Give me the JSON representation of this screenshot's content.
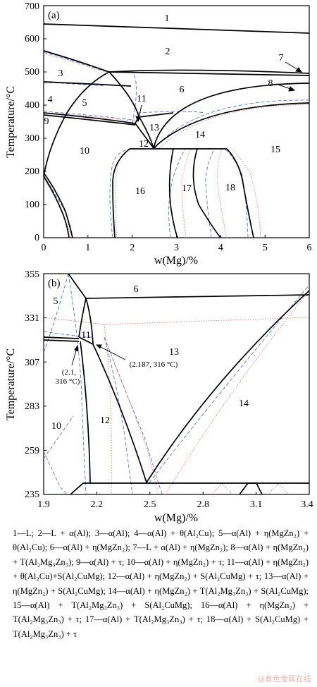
{
  "panel_a": {
    "label": "(a)",
    "ylabel": "Temperature/°C",
    "xlabel": "w(Mg)/%",
    "x_ticks": [
      "0",
      "1",
      "2",
      "3",
      "4",
      "5",
      "6"
    ],
    "y_ticks": [
      "0",
      "100",
      "200",
      "300",
      "400",
      "500",
      "600",
      "700"
    ],
    "xlim": [
      0,
      6
    ],
    "ylim": [
      0,
      700
    ],
    "region_numbers": [
      "1",
      "2",
      "3",
      "4",
      "5",
      "6",
      "7",
      "8",
      "9",
      "10",
      "11",
      "12",
      "13",
      "14",
      "15",
      "16",
      "17",
      "18"
    ]
  },
  "panel_b": {
    "label": "(b)",
    "ylabel": "Temperature/°C",
    "xlabel": "w(Mg)/%",
    "x_ticks": [
      "1.9",
      "2.2",
      "2.5",
      "2.8",
      "3.1",
      "3.4"
    ],
    "y_ticks": [
      "235",
      "259",
      "283",
      "307",
      "331",
      "355"
    ],
    "xlim": [
      1.9,
      3.4
    ],
    "ylim": [
      235,
      355
    ],
    "region_numbers": [
      "5",
      "6",
      "10",
      "11",
      "12",
      "13",
      "14"
    ],
    "point_a": "(2.1,",
    "point_a2": "316 °C)",
    "point_b": "(2.187, 316 °C)"
  },
  "legend_items": [
    "1—L;",
    "2—L + α(Al);",
    "3—α(Al);",
    "4—α(Al) + θ(Al₂Cu);",
    "5—α(Al) + η(MgZn₂) + θ(Al₂Cu);",
    "6—α(Al) + η(MgZn₂);",
    "7—L + α(Al) + η(MgZn₂);",
    "8—α(Al) + η(MgZn₂) + T(Al₂Mg₃Zn₃);",
    "9—α(Al) + τ;",
    "10—α(Al) + η(MgZn₂) + τ;",
    "11—α(Al) + η(MgZn₂) + θ(Al₂Cu)+S(Al₂CuMg);",
    "12—α(Al) + η(MgZn₂) + S(Al₂CuMg) + τ;",
    "13—α(Al) + η(MgZn₂) + S(Al₂CuMg);",
    "14—α(Al) + η(MgZn₂) + T(Al₂Mg₃Zn₃) + S(Al₂CuMg);",
    "15—α(Al) + T(Al₂Mg₃Zn₃) + S(Al₂CuMg);",
    "16—α(Al) + η(MgZn₂) + T(Al₂Mg₃Zn₃) + τ;",
    "17—α(Al) + T(Al₂Mg₃Zn₃) + τ;",
    "18—α(Al) + S(Al₂CuMg) + T(Al₂Mg₃Zn₃) + τ"
  ],
  "watermark": "@有色金属在线",
  "colors": {
    "calc_line": "#000000",
    "dashed": "#5a6fd6",
    "dotted": "#e07a7a"
  }
}
